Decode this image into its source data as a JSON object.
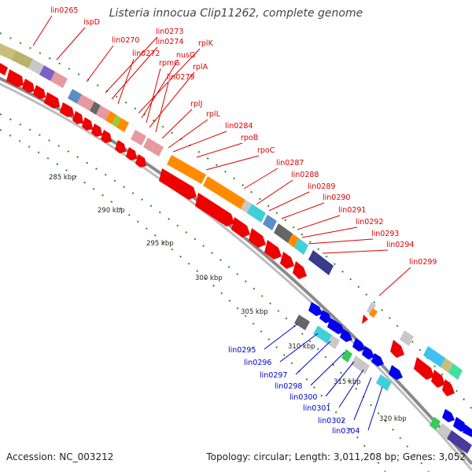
{
  "title": "Listeria innocua Clip11262, complete genome",
  "accession": "Accession: NC_003212",
  "topology": "Topology: circular; Length: 3,011,208 bp; Genes: 3,052",
  "colors": {
    "red_label": "#dd0000",
    "blue_label": "#0000cc",
    "backbone": "#777777",
    "tick": "#228822"
  },
  "scale_labels": [
    "285 kbp",
    "290 kbp",
    "295 kbp",
    "300 kbp",
    "305 kbp",
    "310 kbp",
    "315 kbp",
    "320 kbp"
  ],
  "red_genes": [
    "lin0265",
    "ispD",
    "lin0270",
    "lin0273",
    "lin0274",
    "lin0272",
    "rplK",
    "nusG",
    "rpmG",
    "rplA",
    "lin0279",
    "rplJ",
    "rplL",
    "lin0284",
    "rpoB",
    "rpoC",
    "lin0287",
    "lin0288",
    "lin0289",
    "lin0290",
    "lin0291",
    "lin0292",
    "lin0293",
    "lin0294",
    "lin0299"
  ],
  "blue_genes": [
    "lin0295",
    "lin0296",
    "lin0297",
    "lin0298",
    "lin0300",
    "lin0301",
    "lin0302",
    "lin0304"
  ]
}
